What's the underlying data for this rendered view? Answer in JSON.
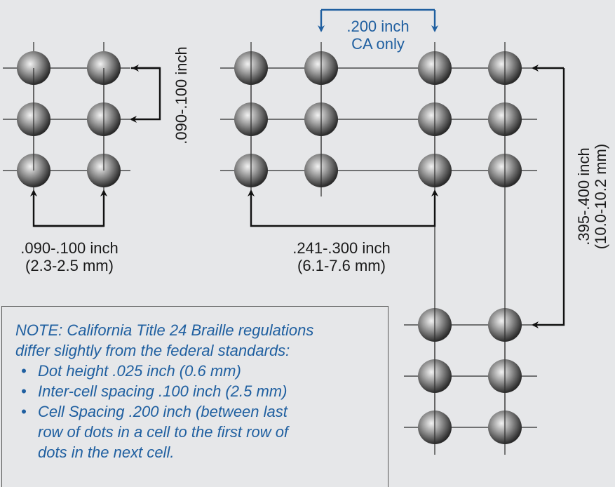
{
  "dimensions": {
    "vertical_dot_spacing": ".090-.100 inch",
    "horizontal_dot_spacing_in": ".090-.100 inch",
    "horizontal_dot_spacing_mm": "(2.3-2.5 mm)",
    "cell_spacing_in": ".241-.300 inch",
    "cell_spacing_mm": "(6.1-7.6 mm)",
    "ca_spacing_line1": ".200 inch",
    "ca_spacing_line2": "CA only",
    "line_spacing_in": ".395-.400 inch",
    "line_spacing_mm": "(10.0-10.2 mm)"
  },
  "note": {
    "heading_line1": "NOTE: California Title 24 Braille regulations",
    "heading_line2": "differ slightly from the federal standards:",
    "items": [
      {
        "lines": [
          "Dot height .025 inch (0.6 mm)"
        ]
      },
      {
        "lines": [
          "Inter-cell spacing .100 inch (2.5 mm)"
        ]
      },
      {
        "lines": [
          "Cell Spacing .200 inch (between last",
          "row of dots in a cell to the first row of",
          "dots in the next cell."
        ]
      }
    ]
  },
  "colors": {
    "background": "#e6e7e9",
    "dimension_text": "#1a1a1a",
    "california_accent": "#1f5fa0"
  }
}
